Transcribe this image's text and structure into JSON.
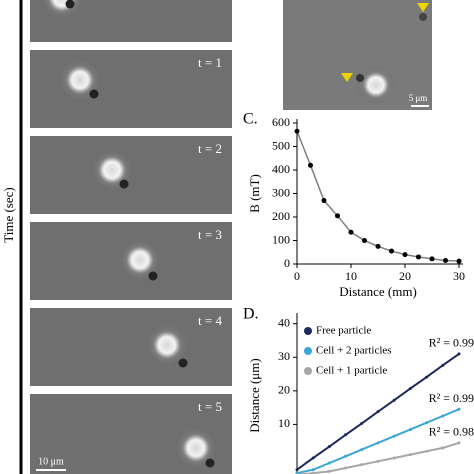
{
  "figure": {
    "y_label": "Time (sec)",
    "frames": [
      "t = 1",
      "t = 2",
      "t = 3",
      "t = 4",
      "t = 5"
    ],
    "scale_bar_left": "10 μm",
    "scale_bar_right": "5 μm"
  },
  "chart_data": [
    {
      "type": "line",
      "panel": "C.",
      "x_label": "Distance (mm)",
      "y_label": "B (mT)",
      "x": [
        0,
        2.5,
        5,
        7.5,
        10,
        12.5,
        15,
        17.5,
        20,
        22.5,
        25,
        27.5,
        30
      ],
      "values": [
        565,
        420,
        270,
        205,
        135,
        100,
        75,
        55,
        40,
        30,
        22,
        15,
        12
      ],
      "color": "#808080",
      "marker_color": "#000000",
      "xlim": [
        0,
        30
      ],
      "xticks": [
        0,
        10,
        20,
        30
      ],
      "ylim": [
        0,
        600
      ],
      "yticks": [
        0,
        100,
        200,
        300,
        400,
        500,
        600
      ]
    },
    {
      "type": "line",
      "panel": "D.",
      "y_label": "Distance (μm)",
      "x": [
        0,
        1,
        2,
        3,
        4,
        5,
        6,
        7,
        8,
        9,
        10
      ],
      "series": [
        {
          "name": "Free particle",
          "color": "#1b2a5c",
          "values": [
            -3.5,
            0,
            3.4,
            6.9,
            10.3,
            13.8,
            17.2,
            20.7,
            24.1,
            27.6,
            31
          ],
          "fit": "R² = 0.99"
        },
        {
          "name": "Cell + 2 particles",
          "color": "#3aa6d8",
          "values": [
            -4.5,
            -3.5,
            -1.5,
            0.5,
            2.5,
            4.5,
            6.5,
            8.5,
            10.5,
            12.5,
            14.5
          ],
          "fit": "R² = 0.99"
        },
        {
          "name": "Cell + 1 particle",
          "color": "#a6a6a6",
          "values": [
            -5,
            -4.5,
            -4,
            -3,
            -2,
            -1,
            0,
            1,
            2,
            3,
            4.5
          ],
          "fit": "R² = 0.98"
        }
      ],
      "xlim": [
        0,
        10
      ],
      "ylim": [
        -5,
        42
      ],
      "yticks": [
        10,
        20,
        30,
        40
      ]
    }
  ]
}
